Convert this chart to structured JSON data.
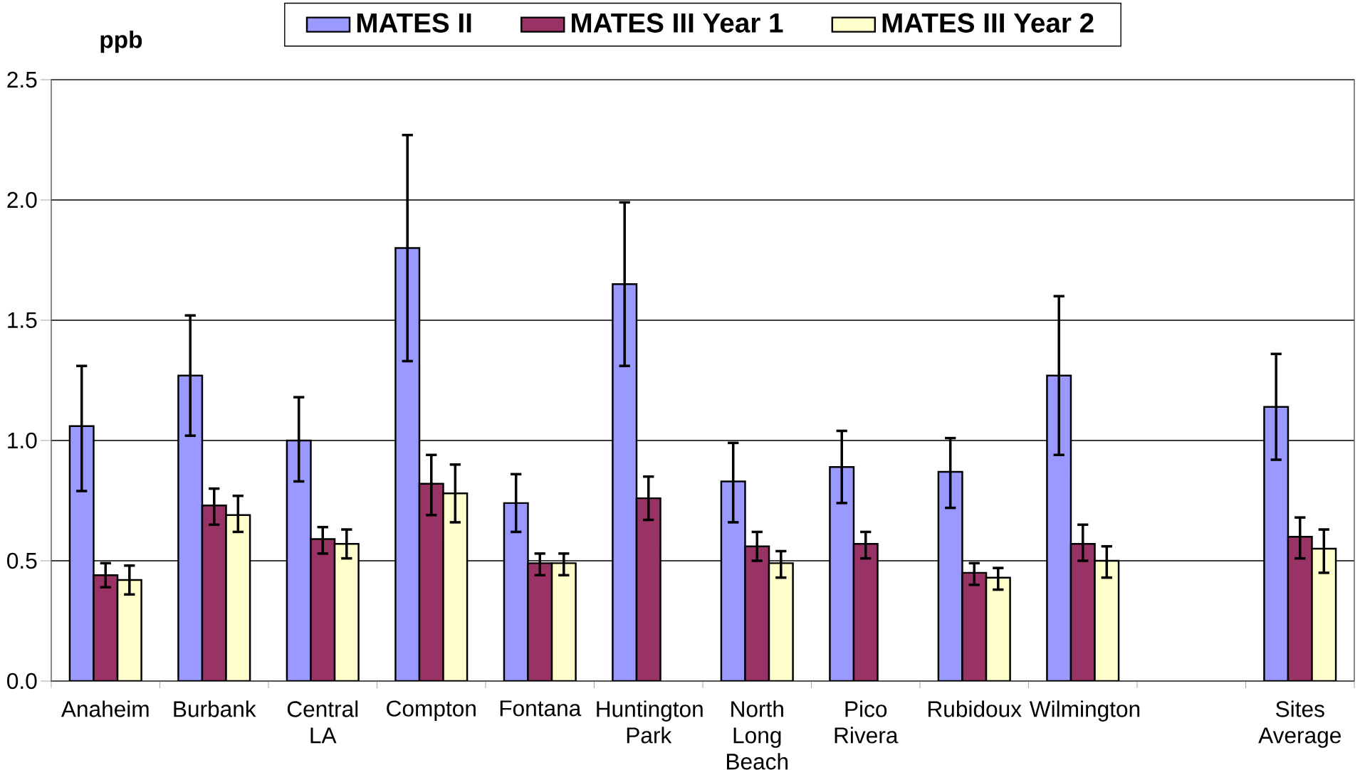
{
  "chart_data": {
    "type": "bar",
    "ylabel": "ppb",
    "categories": [
      "Anaheim",
      "Burbank",
      "Central LA",
      "Compton",
      "Fontana",
      "Huntington Park",
      "North Long Beach",
      "Pico Rivera",
      "Rubidoux",
      "Wilmington",
      null,
      "Sites Average"
    ],
    "series": [
      {
        "name": "MATES II",
        "color": "#9999ff",
        "values": [
          1.06,
          1.27,
          1.0,
          1.8,
          0.74,
          1.65,
          0.83,
          0.89,
          0.87,
          1.27,
          null,
          1.14
        ],
        "errors": [
          [
            0.79,
            1.31
          ],
          [
            1.02,
            1.52
          ],
          [
            0.83,
            1.18
          ],
          [
            1.33,
            2.27
          ],
          [
            0.62,
            0.86
          ],
          [
            1.31,
            1.99
          ],
          [
            0.66,
            0.99
          ],
          [
            0.74,
            1.04
          ],
          [
            0.72,
            1.01
          ],
          [
            0.94,
            1.6
          ],
          null,
          [
            0.92,
            1.36
          ]
        ]
      },
      {
        "name": "MATES III Year 1",
        "color": "#993366",
        "values": [
          0.44,
          0.73,
          0.59,
          0.82,
          0.49,
          0.76,
          0.56,
          0.57,
          0.45,
          0.57,
          null,
          0.6
        ],
        "errors": [
          [
            0.39,
            0.49
          ],
          [
            0.65,
            0.8
          ],
          [
            0.53,
            0.64
          ],
          [
            0.69,
            0.94
          ],
          [
            0.44,
            0.53
          ],
          [
            0.67,
            0.85
          ],
          [
            0.5,
            0.62
          ],
          [
            0.51,
            0.62
          ],
          [
            0.4,
            0.49
          ],
          [
            0.5,
            0.65
          ],
          null,
          [
            0.51,
            0.68
          ]
        ]
      },
      {
        "name": "MATES III Year 2",
        "color": "#ffffcc",
        "values": [
          0.42,
          0.69,
          0.57,
          0.78,
          0.49,
          null,
          0.49,
          null,
          0.43,
          0.5,
          null,
          0.55
        ],
        "errors": [
          [
            0.36,
            0.48
          ],
          [
            0.62,
            0.77
          ],
          [
            0.51,
            0.63
          ],
          [
            0.66,
            0.9
          ],
          [
            0.44,
            0.53
          ],
          null,
          [
            0.43,
            0.54
          ],
          null,
          [
            0.38,
            0.47
          ],
          [
            0.43,
            0.56
          ],
          null,
          [
            0.45,
            0.63
          ]
        ]
      }
    ],
    "ylim": [
      0,
      2.5
    ],
    "yticks": [
      {
        "value": 0,
        "label": "0.0"
      },
      {
        "value": 0.5,
        "label": "0.5"
      },
      {
        "value": 1,
        "label": "1.0"
      },
      {
        "value": 1.5,
        "label": "1.5"
      },
      {
        "value": 2,
        "label": "2.0"
      },
      {
        "value": 2.5,
        "label": "2.5"
      }
    ],
    "grid": "y",
    "legend": "top"
  }
}
